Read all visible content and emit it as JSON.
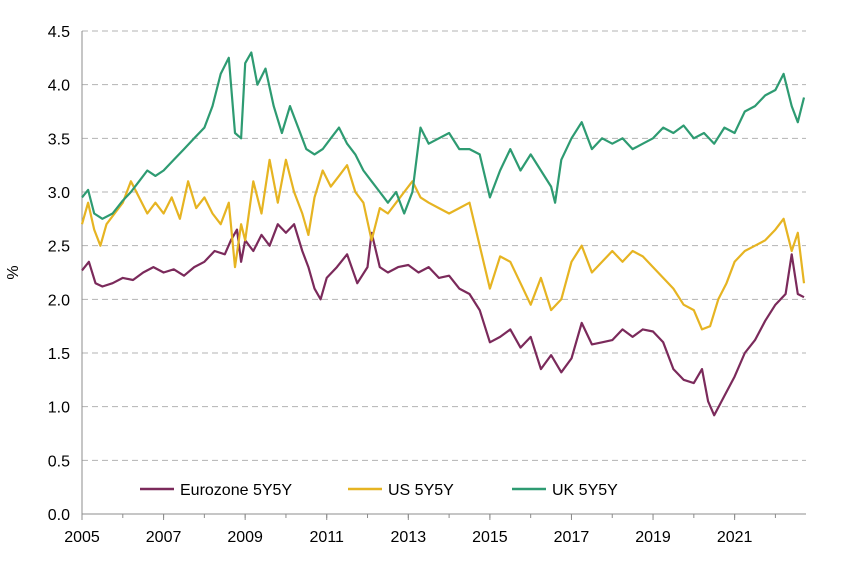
{
  "chart_data": {
    "type": "line",
    "title": "",
    "xlabel": "",
    "ylabel": "%",
    "xlim": [
      2005.0,
      2022.75
    ],
    "ylim": [
      0,
      4.5
    ],
    "x_ticks": [
      "2005",
      "2007",
      "2009",
      "2011",
      "2013",
      "2015",
      "2017",
      "2019",
      "2021"
    ],
    "y_ticks": [
      "0.0",
      "0.5",
      "1.0",
      "1.5",
      "2.0",
      "2.5",
      "3.0",
      "3.5",
      "4.0",
      "4.5"
    ],
    "grid": "horizontal dashed",
    "legend_position": "bottom-left",
    "series": [
      {
        "name": "Eurozone 5Y5Y",
        "color": "#7B2A5B",
        "points": [
          [
            2005.0,
            2.27
          ],
          [
            2005.17,
            2.35
          ],
          [
            2005.33,
            2.15
          ],
          [
            2005.5,
            2.12
          ],
          [
            2005.75,
            2.15
          ],
          [
            2006.0,
            2.2
          ],
          [
            2006.25,
            2.18
          ],
          [
            2006.5,
            2.25
          ],
          [
            2006.75,
            2.3
          ],
          [
            2007.0,
            2.25
          ],
          [
            2007.25,
            2.28
          ],
          [
            2007.5,
            2.22
          ],
          [
            2007.75,
            2.3
          ],
          [
            2008.0,
            2.35
          ],
          [
            2008.25,
            2.45
          ],
          [
            2008.5,
            2.42
          ],
          [
            2008.65,
            2.55
          ],
          [
            2008.8,
            2.65
          ],
          [
            2008.9,
            2.35
          ],
          [
            2009.0,
            2.55
          ],
          [
            2009.2,
            2.45
          ],
          [
            2009.4,
            2.6
          ],
          [
            2009.6,
            2.5
          ],
          [
            2009.8,
            2.7
          ],
          [
            2010.0,
            2.62
          ],
          [
            2010.2,
            2.7
          ],
          [
            2010.4,
            2.45
          ],
          [
            2010.55,
            2.3
          ],
          [
            2010.7,
            2.1
          ],
          [
            2010.85,
            2.0
          ],
          [
            2011.0,
            2.2
          ],
          [
            2011.25,
            2.3
          ],
          [
            2011.5,
            2.42
          ],
          [
            2011.75,
            2.15
          ],
          [
            2012.0,
            2.3
          ],
          [
            2012.1,
            2.62
          ],
          [
            2012.3,
            2.3
          ],
          [
            2012.5,
            2.25
          ],
          [
            2012.75,
            2.3
          ],
          [
            2013.0,
            2.32
          ],
          [
            2013.25,
            2.25
          ],
          [
            2013.5,
            2.3
          ],
          [
            2013.75,
            2.2
          ],
          [
            2014.0,
            2.22
          ],
          [
            2014.25,
            2.1
          ],
          [
            2014.5,
            2.05
          ],
          [
            2014.75,
            1.9
          ],
          [
            2015.0,
            1.6
          ],
          [
            2015.25,
            1.65
          ],
          [
            2015.5,
            1.72
          ],
          [
            2015.75,
            1.55
          ],
          [
            2016.0,
            1.65
          ],
          [
            2016.25,
            1.35
          ],
          [
            2016.5,
            1.48
          ],
          [
            2016.75,
            1.32
          ],
          [
            2017.0,
            1.45
          ],
          [
            2017.25,
            1.78
          ],
          [
            2017.5,
            1.58
          ],
          [
            2017.75,
            1.6
          ],
          [
            2018.0,
            1.62
          ],
          [
            2018.25,
            1.72
          ],
          [
            2018.5,
            1.65
          ],
          [
            2018.75,
            1.72
          ],
          [
            2019.0,
            1.7
          ],
          [
            2019.25,
            1.6
          ],
          [
            2019.5,
            1.35
          ],
          [
            2019.75,
            1.25
          ],
          [
            2020.0,
            1.22
          ],
          [
            2020.2,
            1.35
          ],
          [
            2020.35,
            1.05
          ],
          [
            2020.5,
            0.92
          ],
          [
            2020.75,
            1.1
          ],
          [
            2021.0,
            1.28
          ],
          [
            2021.25,
            1.5
          ],
          [
            2021.5,
            1.62
          ],
          [
            2021.75,
            1.8
          ],
          [
            2022.0,
            1.95
          ],
          [
            2022.25,
            2.05
          ],
          [
            2022.4,
            2.42
          ],
          [
            2022.55,
            2.05
          ],
          [
            2022.7,
            2.02
          ]
        ]
      },
      {
        "name": "US 5Y5Y",
        "color": "#E6B422",
        "points": [
          [
            2005.0,
            2.7
          ],
          [
            2005.15,
            2.9
          ],
          [
            2005.3,
            2.65
          ],
          [
            2005.45,
            2.5
          ],
          [
            2005.6,
            2.7
          ],
          [
            2005.8,
            2.8
          ],
          [
            2006.0,
            2.9
          ],
          [
            2006.2,
            3.1
          ],
          [
            2006.4,
            2.95
          ],
          [
            2006.6,
            2.8
          ],
          [
            2006.8,
            2.9
          ],
          [
            2007.0,
            2.8
          ],
          [
            2007.2,
            2.95
          ],
          [
            2007.4,
            2.75
          ],
          [
            2007.6,
            3.1
          ],
          [
            2007.8,
            2.85
          ],
          [
            2008.0,
            2.95
          ],
          [
            2008.2,
            2.8
          ],
          [
            2008.4,
            2.7
          ],
          [
            2008.6,
            2.9
          ],
          [
            2008.75,
            2.3
          ],
          [
            2008.9,
            2.7
          ],
          [
            2009.0,
            2.55
          ],
          [
            2009.2,
            3.1
          ],
          [
            2009.4,
            2.8
          ],
          [
            2009.6,
            3.3
          ],
          [
            2009.8,
            2.9
          ],
          [
            2010.0,
            3.3
          ],
          [
            2010.2,
            3.0
          ],
          [
            2010.4,
            2.8
          ],
          [
            2010.55,
            2.6
          ],
          [
            2010.7,
            2.95
          ],
          [
            2010.9,
            3.2
          ],
          [
            2011.1,
            3.05
          ],
          [
            2011.3,
            3.15
          ],
          [
            2011.5,
            3.25
          ],
          [
            2011.7,
            3.0
          ],
          [
            2011.9,
            2.9
          ],
          [
            2012.1,
            2.55
          ],
          [
            2012.3,
            2.85
          ],
          [
            2012.5,
            2.8
          ],
          [
            2012.7,
            2.9
          ],
          [
            2012.9,
            3.0
          ],
          [
            2013.1,
            3.1
          ],
          [
            2013.3,
            2.95
          ],
          [
            2013.5,
            2.9
          ],
          [
            2013.75,
            2.85
          ],
          [
            2014.0,
            2.8
          ],
          [
            2014.25,
            2.85
          ],
          [
            2014.5,
            2.9
          ],
          [
            2014.75,
            2.5
          ],
          [
            2015.0,
            2.1
          ],
          [
            2015.25,
            2.4
          ],
          [
            2015.5,
            2.35
          ],
          [
            2015.75,
            2.15
          ],
          [
            2016.0,
            1.95
          ],
          [
            2016.25,
            2.2
          ],
          [
            2016.5,
            1.9
          ],
          [
            2016.75,
            2.0
          ],
          [
            2017.0,
            2.35
          ],
          [
            2017.25,
            2.5
          ],
          [
            2017.5,
            2.25
          ],
          [
            2017.75,
            2.35
          ],
          [
            2018.0,
            2.45
          ],
          [
            2018.25,
            2.35
          ],
          [
            2018.5,
            2.45
          ],
          [
            2018.75,
            2.4
          ],
          [
            2019.0,
            2.3
          ],
          [
            2019.25,
            2.2
          ],
          [
            2019.5,
            2.1
          ],
          [
            2019.75,
            1.95
          ],
          [
            2020.0,
            1.9
          ],
          [
            2020.2,
            1.72
          ],
          [
            2020.4,
            1.75
          ],
          [
            2020.6,
            2.0
          ],
          [
            2020.8,
            2.15
          ],
          [
            2021.0,
            2.35
          ],
          [
            2021.25,
            2.45
          ],
          [
            2021.5,
            2.5
          ],
          [
            2021.75,
            2.55
          ],
          [
            2022.0,
            2.65
          ],
          [
            2022.2,
            2.75
          ],
          [
            2022.4,
            2.45
          ],
          [
            2022.55,
            2.62
          ],
          [
            2022.7,
            2.15
          ]
        ]
      },
      {
        "name": "UK 5Y5Y",
        "color": "#2E9B72",
        "points": [
          [
            2005.0,
            2.95
          ],
          [
            2005.15,
            3.02
          ],
          [
            2005.3,
            2.8
          ],
          [
            2005.5,
            2.75
          ],
          [
            2005.75,
            2.8
          ],
          [
            2006.0,
            2.92
          ],
          [
            2006.2,
            3.0
          ],
          [
            2006.4,
            3.1
          ],
          [
            2006.6,
            3.2
          ],
          [
            2006.8,
            3.15
          ],
          [
            2007.0,
            3.2
          ],
          [
            2007.25,
            3.3
          ],
          [
            2007.5,
            3.4
          ],
          [
            2007.75,
            3.5
          ],
          [
            2008.0,
            3.6
          ],
          [
            2008.2,
            3.8
          ],
          [
            2008.4,
            4.1
          ],
          [
            2008.6,
            4.25
          ],
          [
            2008.75,
            3.55
          ],
          [
            2008.9,
            3.5
          ],
          [
            2009.0,
            4.2
          ],
          [
            2009.15,
            4.3
          ],
          [
            2009.3,
            4.0
          ],
          [
            2009.5,
            4.15
          ],
          [
            2009.7,
            3.8
          ],
          [
            2009.9,
            3.55
          ],
          [
            2010.1,
            3.8
          ],
          [
            2010.3,
            3.6
          ],
          [
            2010.5,
            3.4
          ],
          [
            2010.7,
            3.35
          ],
          [
            2010.9,
            3.4
          ],
          [
            2011.1,
            3.5
          ],
          [
            2011.3,
            3.6
          ],
          [
            2011.5,
            3.45
          ],
          [
            2011.7,
            3.35
          ],
          [
            2011.9,
            3.2
          ],
          [
            2012.1,
            3.1
          ],
          [
            2012.3,
            3.0
          ],
          [
            2012.5,
            2.9
          ],
          [
            2012.7,
            3.0
          ],
          [
            2012.9,
            2.8
          ],
          [
            2013.1,
            3.0
          ],
          [
            2013.3,
            3.6
          ],
          [
            2013.5,
            3.45
          ],
          [
            2013.75,
            3.5
          ],
          [
            2014.0,
            3.55
          ],
          [
            2014.25,
            3.4
          ],
          [
            2014.5,
            3.4
          ],
          [
            2014.75,
            3.35
          ],
          [
            2015.0,
            2.95
          ],
          [
            2015.25,
            3.2
          ],
          [
            2015.5,
            3.4
          ],
          [
            2015.75,
            3.2
          ],
          [
            2016.0,
            3.35
          ],
          [
            2016.25,
            3.2
          ],
          [
            2016.5,
            3.05
          ],
          [
            2016.6,
            2.9
          ],
          [
            2016.75,
            3.3
          ],
          [
            2017.0,
            3.5
          ],
          [
            2017.25,
            3.65
          ],
          [
            2017.5,
            3.4
          ],
          [
            2017.75,
            3.5
          ],
          [
            2018.0,
            3.45
          ],
          [
            2018.25,
            3.5
          ],
          [
            2018.5,
            3.4
          ],
          [
            2018.75,
            3.45
          ],
          [
            2019.0,
            3.5
          ],
          [
            2019.25,
            3.6
          ],
          [
            2019.5,
            3.55
          ],
          [
            2019.75,
            3.62
          ],
          [
            2020.0,
            3.5
          ],
          [
            2020.25,
            3.55
          ],
          [
            2020.5,
            3.45
          ],
          [
            2020.75,
            3.6
          ],
          [
            2021.0,
            3.55
          ],
          [
            2021.25,
            3.75
          ],
          [
            2021.5,
            3.8
          ],
          [
            2021.75,
            3.9
          ],
          [
            2022.0,
            3.95
          ],
          [
            2022.2,
            4.1
          ],
          [
            2022.4,
            3.8
          ],
          [
            2022.55,
            3.65
          ],
          [
            2022.7,
            3.88
          ]
        ]
      }
    ]
  }
}
